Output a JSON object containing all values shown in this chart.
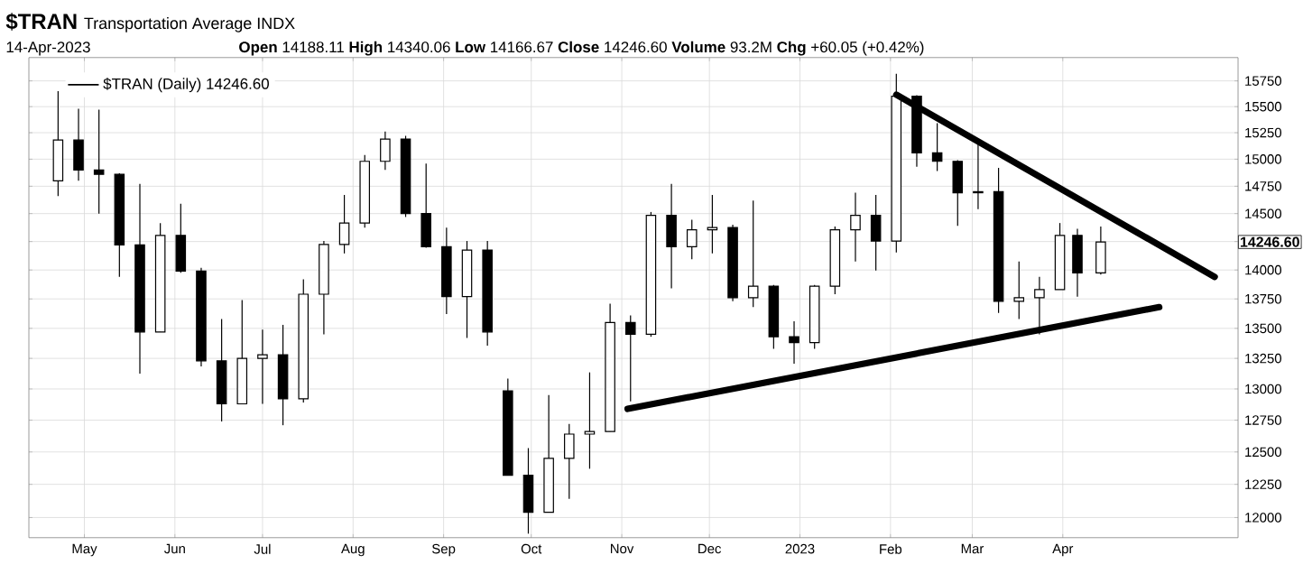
{
  "chart_data": {
    "type": "candlestick",
    "title": "$TRAN",
    "subtitle": "Transportation Average INDX",
    "annotations": [
      "14-Apr-2023",
      "**Open** 14188.11 **High** 14340.06 **Low** 14166.67 **Close** 14246.60 **Volume** 93.2M **Chg** +60.05 (+0.42%)",
      "14246.60"
    ],
    "series": [
      {
        "name": "$TRAN (Daily) 14246.60",
        "color": "#000000",
        "x": [
          "2022-04-22",
          "2022-04-29",
          "2022-05-06",
          "2022-05-13",
          "2022-05-20",
          "2022-05-27",
          "2022-06-03",
          "2022-06-10",
          "2022-06-17",
          "2022-06-24",
          "2022-07-01",
          "2022-07-08",
          "2022-07-15",
          "2022-07-22",
          "2022-07-29",
          "2022-08-05",
          "2022-08-12",
          "2022-08-19",
          "2022-08-26",
          "2022-09-02",
          "2022-09-09",
          "2022-09-16",
          "2022-09-23",
          "2022-09-30",
          "2022-10-07",
          "2022-10-14",
          "2022-10-21",
          "2022-10-28",
          "2022-11-04",
          "2022-11-11",
          "2022-11-18",
          "2022-11-25",
          "2022-12-02",
          "2022-12-09",
          "2022-12-16",
          "2022-12-23",
          "2022-12-30",
          "2023-01-06",
          "2023-01-13",
          "2023-01-20",
          "2023-01-27",
          "2023-02-03",
          "2023-02-10",
          "2023-02-17",
          "2023-02-24",
          "2023-03-03",
          "2023-03-10",
          "2023-03-17",
          "2023-03-24",
          "2023-03-31",
          "2023-04-06",
          "2023-04-14"
        ],
        "ohlc": [
          [
            14800,
            15650,
            14660,
            15180
          ],
          [
            15180,
            15480,
            14800,
            14900
          ],
          [
            14900,
            15470,
            14500,
            14860
          ],
          [
            14860,
            14870,
            13940,
            14220
          ],
          [
            14220,
            14770,
            13125,
            13470
          ],
          [
            13470,
            14415,
            13470,
            14305
          ],
          [
            14305,
            14590,
            13975,
            13990
          ],
          [
            13990,
            14020,
            13185,
            13230
          ],
          [
            13230,
            13580,
            12740,
            12880
          ],
          [
            12880,
            13740,
            12880,
            13250
          ],
          [
            13250,
            13490,
            12880,
            13280
          ],
          [
            13280,
            13530,
            12710,
            12920
          ],
          [
            12920,
            13920,
            12890,
            13790
          ],
          [
            13790,
            14255,
            13450,
            14225
          ],
          [
            14225,
            14670,
            14145,
            14415
          ],
          [
            14415,
            15040,
            14375,
            14980
          ],
          [
            14980,
            15260,
            14900,
            15190
          ],
          [
            15190,
            15220,
            14470,
            14500
          ],
          [
            14500,
            14960,
            14195,
            14205
          ],
          [
            14205,
            14375,
            13620,
            13770
          ],
          [
            13770,
            14255,
            13420,
            14175
          ],
          [
            14175,
            14255,
            13355,
            13470
          ],
          [
            12985,
            13085,
            12320,
            12320
          ],
          [
            12320,
            12530,
            11880,
            12040
          ],
          [
            12040,
            12950,
            12040,
            12450
          ],
          [
            12450,
            12720,
            12140,
            12640
          ],
          [
            12640,
            13135,
            12370,
            12660
          ],
          [
            12660,
            13710,
            12660,
            13550
          ],
          [
            13550,
            13610,
            12900,
            13450
          ],
          [
            13450,
            14515,
            13430,
            14485
          ],
          [
            14485,
            14770,
            13840,
            14205
          ],
          [
            14205,
            14445,
            14095,
            14355
          ],
          [
            14355,
            14670,
            14145,
            14375
          ],
          [
            14375,
            14400,
            13730,
            13760
          ],
          [
            13760,
            14620,
            13680,
            13860
          ],
          [
            13860,
            13870,
            13330,
            13430
          ],
          [
            13430,
            13560,
            13205,
            13380
          ],
          [
            13380,
            13870,
            13330,
            13860
          ],
          [
            13860,
            14385,
            13790,
            14355
          ],
          [
            14355,
            14690,
            14075,
            14485
          ],
          [
            14485,
            14670,
            13995,
            14255
          ],
          [
            14255,
            15820,
            14155,
            15600
          ],
          [
            15600,
            15610,
            14930,
            15060
          ],
          [
            15060,
            15340,
            14890,
            14980
          ],
          [
            14980,
            14990,
            14390,
            14690
          ],
          [
            14690,
            15140,
            14540,
            14700
          ],
          [
            14700,
            14920,
            13630,
            13730
          ],
          [
            13730,
            14075,
            13580,
            13760
          ],
          [
            13760,
            13940,
            13450,
            13830
          ],
          [
            13830,
            14415,
            13830,
            14305
          ],
          [
            14305,
            14365,
            13770,
            13975
          ],
          [
            13975,
            14385,
            13960,
            14246.6
          ]
        ]
      },
      {
        "type": "line",
        "color": "#000000",
        "x": [
          "2022-11-03",
          "2023-05-04"
        ],
        "values": [
          12840,
          13680
        ]
      },
      {
        "type": "line",
        "color": "#000000",
        "x": [
          "2023-02-03",
          "2023-05-23"
        ],
        "values": [
          15615,
          13940
        ]
      }
    ],
    "xlim": [
      "2022-04-12",
      "2023-05-31"
    ],
    "ylim": [
      11850,
      15980
    ],
    "log": true,
    "xticks": [
      {
        "value": "2022-05-01",
        "label": "May"
      },
      {
        "value": "2022-06-01",
        "label": "Jun"
      },
      {
        "value": "2022-07-01",
        "label": "Jul"
      },
      {
        "value": "2022-08-01",
        "label": "Aug"
      },
      {
        "value": "2022-09-01",
        "label": "Sep"
      },
      {
        "value": "2022-10-01",
        "label": "Oct"
      },
      {
        "value": "2022-11-01",
        "label": "Nov"
      },
      {
        "value": "2022-12-01",
        "label": "Dec"
      },
      {
        "value": "2023-01-01",
        "label": "2023"
      },
      {
        "value": "2023-02-01",
        "label": "Feb"
      },
      {
        "value": "2023-03-01",
        "label": "Mar"
      },
      {
        "value": "2023-04-01",
        "label": "Apr"
      }
    ],
    "yticks": [
      12000,
      12250,
      12500,
      12750,
      13000,
      13250,
      13500,
      13750,
      14000,
      {
        "value": 14250,
        "label": null
      },
      14500,
      14750,
      15000,
      15250,
      15500,
      15750
    ],
    "grid": true,
    "legend": "top left"
  }
}
